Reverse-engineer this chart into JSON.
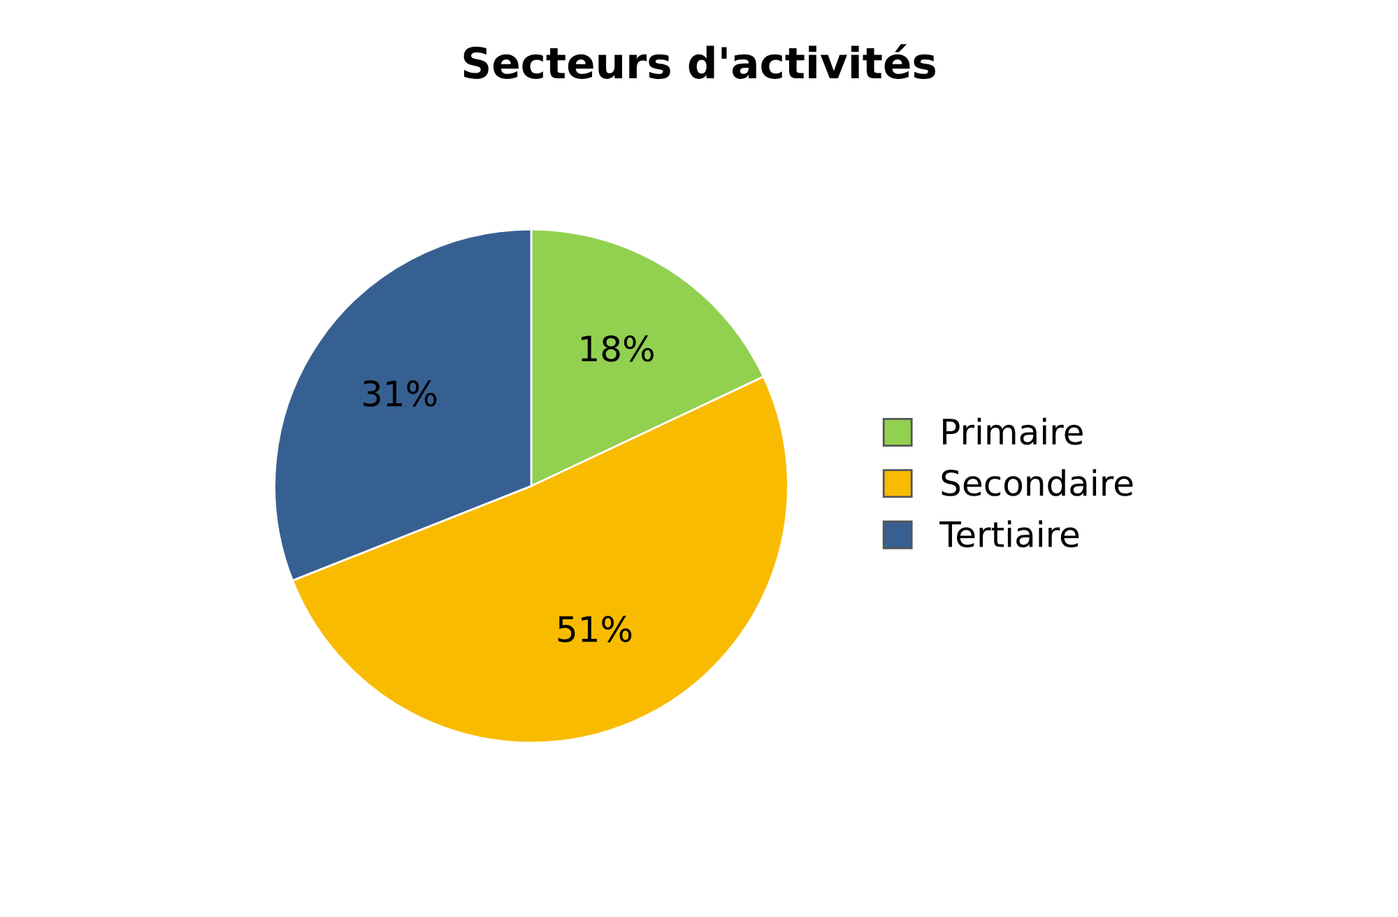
{
  "chart_data": {
    "type": "pie",
    "title": "Secteurs d'activités",
    "categories": [
      "Primaire",
      "Secondaire",
      "Tertiaire"
    ],
    "values": [
      18,
      51,
      31
    ],
    "colors": [
      "#92d050",
      "#f9bb00",
      "#376092"
    ],
    "value_labels": [
      "18%",
      "51%",
      "31%"
    ],
    "legend": "right"
  }
}
